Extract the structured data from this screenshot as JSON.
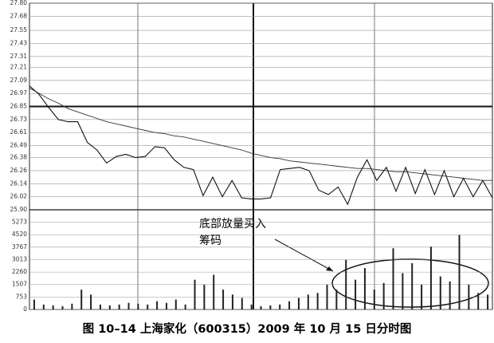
{
  "caption": "图 10–14 上海家化（600315）2009 年 10 月 15 日分时图",
  "chart_data": [
    {
      "type": "line",
      "ylim": [
        25.9,
        27.8
      ],
      "yticks": [
        {
          "value": 27.8,
          "label": "27.80"
        },
        27.68,
        27.55,
        27.43,
        27.31,
        27.21,
        27.09,
        26.97,
        26.85,
        26.73,
        26.61,
        26.49,
        26.38,
        26.26,
        26.14,
        26.02,
        {
          "value": 25.9,
          "label": "25.90"
        }
      ],
      "grid": true,
      "reference_line": 26.85,
      "series": [
        {
          "color": "#111111",
          "values": [
            27.04,
            26.96,
            26.84,
            26.73,
            26.71,
            26.71,
            26.52,
            26.45,
            26.33,
            26.39,
            26.41,
            26.38,
            26.39,
            26.48,
            26.47,
            26.36,
            26.29,
            26.27,
            26.03,
            26.2,
            26.02,
            26.17,
            26.01,
            26.0,
            26.0,
            26.01,
            26.27,
            26.28,
            26.29,
            26.26,
            26.08,
            26.04,
            26.11,
            25.95,
            26.2,
            26.36,
            26.17,
            26.29,
            26.07,
            26.29,
            26.05,
            26.27,
            26.04,
            26.26,
            26.02,
            26.19,
            26.02,
            26.17,
            26.01
          ]
        },
        {
          "color": "#333333",
          "values": [
            27.02,
            26.97,
            26.92,
            26.88,
            26.83,
            26.8,
            26.77,
            26.74,
            26.71,
            26.69,
            26.67,
            26.65,
            26.63,
            26.61,
            26.6,
            26.58,
            26.57,
            26.55,
            26.53,
            26.51,
            26.49,
            26.47,
            26.45,
            26.42,
            26.4,
            26.38,
            26.37,
            26.35,
            26.34,
            26.33,
            26.32,
            26.31,
            26.3,
            26.29,
            26.28,
            26.28,
            26.27,
            26.26,
            26.25,
            26.25,
            26.24,
            26.23,
            26.22,
            26.21,
            26.2,
            26.19,
            26.18,
            26.17,
            26.17
          ]
        }
      ]
    },
    {
      "type": "bar",
      "ylim": [
        0,
        6026
      ],
      "yticks": [
        5273,
        4520,
        3767,
        3013,
        2260,
        1507,
        753,
        0
      ],
      "grid": true,
      "color": "#222222",
      "values": [
        600,
        300,
        250,
        200,
        350,
        1200,
        900,
        300,
        250,
        300,
        400,
        350,
        300,
        500,
        400,
        600,
        300,
        1800,
        1500,
        2100,
        1200,
        900,
        700,
        300,
        200,
        250,
        300,
        500,
        700,
        900,
        1000,
        1500,
        1200,
        3000,
        1800,
        2500,
        1200,
        1600,
        3700,
        2200,
        2800,
        1500,
        3800,
        2000,
        1700,
        4500,
        1500,
        1000,
        900
      ],
      "annotation": [
        "底部放量买入",
        "筹码"
      ]
    }
  ]
}
